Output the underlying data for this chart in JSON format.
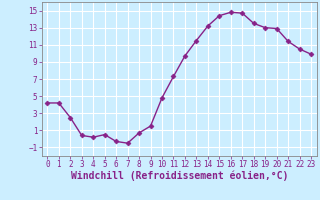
{
  "x": [
    0,
    1,
    2,
    3,
    4,
    5,
    6,
    7,
    8,
    9,
    10,
    11,
    12,
    13,
    14,
    15,
    16,
    17,
    18,
    19,
    20,
    21,
    22,
    23
  ],
  "y": [
    4.2,
    4.2,
    2.5,
    0.4,
    0.2,
    0.5,
    -0.3,
    -0.5,
    0.7,
    1.5,
    4.8,
    7.3,
    9.7,
    11.5,
    13.2,
    14.4,
    14.8,
    14.7,
    13.5,
    13.0,
    12.9,
    11.4,
    10.5,
    9.9
  ],
  "line_color": "#882288",
  "marker": "D",
  "marker_size": 2.5,
  "bg_color": "#cceeff",
  "grid_color": "#ffffff",
  "xlabel": "Windchill (Refroidissement éolien,°C)",
  "xlim": [
    -0.5,
    23.5
  ],
  "ylim": [
    -2,
    16
  ],
  "yticks": [
    -1,
    1,
    3,
    5,
    7,
    9,
    11,
    13,
    15
  ],
  "xticks": [
    0,
    1,
    2,
    3,
    4,
    5,
    6,
    7,
    8,
    9,
    10,
    11,
    12,
    13,
    14,
    15,
    16,
    17,
    18,
    19,
    20,
    21,
    22,
    23
  ],
  "tick_fontsize": 5.5,
  "xlabel_fontsize": 7.0,
  "line_width": 1.0
}
